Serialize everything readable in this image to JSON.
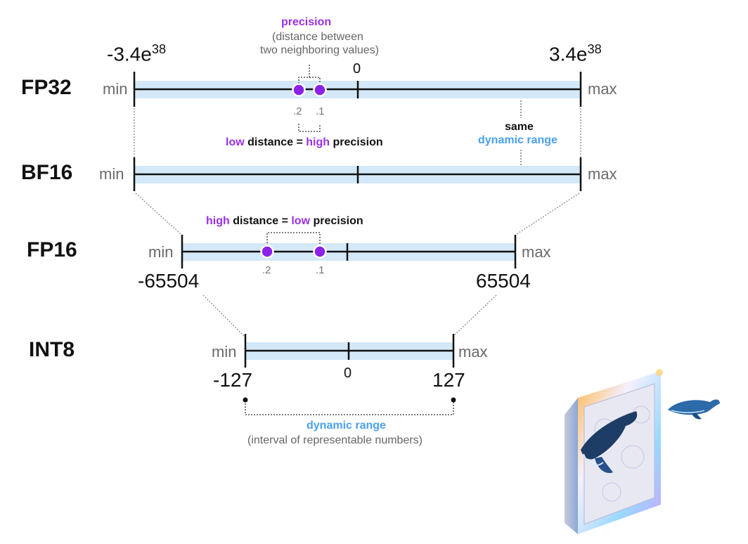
{
  "formats": {
    "fp32": {
      "label": "FP32",
      "min_label": "min",
      "max_label": "max",
      "min_base": "-3.4e",
      "max_base": "3.4e",
      "exponent": "38",
      "zero": "0"
    },
    "bf16": {
      "label": "BF16",
      "min_label": "min",
      "max_label": "max"
    },
    "fp16": {
      "label": "FP16",
      "min_label": "min",
      "max_label": "max",
      "min_value": "-65504",
      "max_value": "65504"
    },
    "int8": {
      "label": "INT8",
      "min_label": "min",
      "max_label": "max",
      "min_value": "-127",
      "max_value": "127",
      "zero": "0"
    }
  },
  "precision_note": {
    "title": "precision",
    "subtitle_line1": "(distance between",
    "subtitle_line2": "two neighboring values)"
  },
  "fp32_ticks": {
    "a": ".2",
    "b": ".1"
  },
  "fp16_ticks": {
    "a": ".2",
    "b": ".1"
  },
  "low_note": {
    "w1": "low",
    "w2": " distance = ",
    "w3": "high",
    "w4": " precision"
  },
  "high_note": {
    "w1": "high",
    "w2": " distance = ",
    "w3": "low",
    "w4": " precision"
  },
  "same_note": {
    "line1": "same",
    "line2": "dynamic range"
  },
  "range_note": {
    "title": "dynamic range",
    "subtitle": "(interval of representable numbers)"
  },
  "colors": {
    "band": "#d3e8f8",
    "purple": "#8b22e8",
    "blue": "#4aa0ef"
  },
  "illustration": {
    "icon": "whale-frame-icon"
  }
}
